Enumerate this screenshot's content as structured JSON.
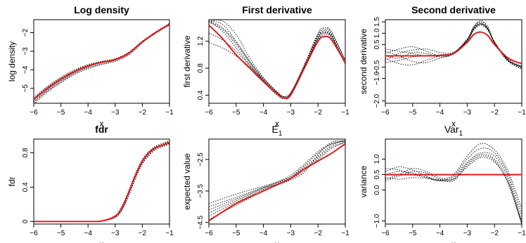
{
  "chart_data": [
    {
      "type": "line",
      "title": "Log density",
      "title_bold": true,
      "xlabel": "x",
      "ylabel": "log density",
      "xlim": [
        -6,
        -1
      ],
      "ylim": [
        -5.8,
        -1.3
      ],
      "xticks": [
        -6,
        -5,
        -4,
        -3,
        -2,
        -1
      ],
      "yticks": [
        -5,
        -4,
        -3,
        -2
      ],
      "truth": {
        "color": "#e41a1c",
        "x": [
          -6.0,
          -5.5,
          -5.0,
          -4.5,
          -4.0,
          -3.5,
          -3.0,
          -2.5,
          -2.0,
          -1.5,
          -1.0
        ],
        "y": [
          -5.6,
          -5.0,
          -4.5,
          -4.1,
          -3.8,
          -3.6,
          -3.45,
          -3.1,
          -2.5,
          -2.0,
          -1.55
        ]
      },
      "replicates_style": "dotted black",
      "replicates": [
        [
          -5.75,
          -5.15,
          -4.65,
          -4.2,
          -3.9,
          -3.68,
          -3.5,
          -3.15,
          -2.5,
          -1.95,
          -1.55
        ],
        [
          -5.55,
          -4.95,
          -4.45,
          -4.05,
          -3.75,
          -3.55,
          -3.4,
          -3.05,
          -2.45,
          -1.95,
          -1.5
        ],
        [
          -5.85,
          -5.2,
          -4.7,
          -4.25,
          -3.95,
          -3.72,
          -3.55,
          -3.2,
          -2.55,
          -2.0,
          -1.6
        ],
        [
          -5.5,
          -4.9,
          -4.4,
          -4.0,
          -3.72,
          -3.55,
          -3.42,
          -3.08,
          -2.48,
          -1.98,
          -1.5
        ],
        [
          -5.7,
          -5.1,
          -4.6,
          -4.15,
          -3.85,
          -3.62,
          -3.48,
          -3.12,
          -2.52,
          -2.02,
          -1.58
        ],
        [
          -5.6,
          -5.05,
          -4.55,
          -4.12,
          -3.82,
          -3.6,
          -3.44,
          -3.1,
          -2.5,
          -2.0,
          -1.55
        ]
      ]
    },
    {
      "type": "line",
      "title": "First derivative",
      "title_bold": true,
      "xlabel": "x",
      "ylabel": "first derivative",
      "xlim": [
        -6,
        -1
      ],
      "ylim": [
        0.28,
        1.52
      ],
      "xticks": [
        -6,
        -5,
        -4,
        -3,
        -2,
        -1
      ],
      "yticks": [
        0.4,
        0.8,
        1.2
      ],
      "truth": {
        "color": "#e41a1c",
        "x": [
          -6.0,
          -5.5,
          -5.0,
          -4.5,
          -4.0,
          -3.5,
          -3.25,
          -3.0,
          -2.5,
          -2.0,
          -1.75,
          -1.5,
          -1.0
        ],
        "y": [
          1.44,
          1.24,
          1.0,
          0.8,
          0.6,
          0.42,
          0.36,
          0.4,
          0.8,
          1.2,
          1.27,
          1.22,
          0.88
        ]
      },
      "replicates_style": "dotted black",
      "replicates": [
        [
          1.5,
          1.35,
          1.1,
          0.85,
          0.6,
          0.4,
          0.35,
          0.42,
          0.85,
          1.28,
          1.36,
          1.3,
          0.9
        ],
        [
          1.5,
          1.45,
          1.2,
          0.9,
          0.62,
          0.42,
          0.36,
          0.4,
          0.8,
          1.25,
          1.34,
          1.28,
          0.88
        ],
        [
          1.48,
          1.38,
          1.15,
          0.88,
          0.64,
          0.44,
          0.38,
          0.44,
          0.82,
          1.22,
          1.3,
          1.25,
          0.86
        ],
        [
          1.5,
          1.5,
          1.3,
          0.95,
          0.66,
          0.45,
          0.38,
          0.43,
          0.84,
          1.3,
          1.38,
          1.32,
          0.9
        ],
        [
          1.18,
          1.1,
          0.98,
          0.82,
          0.62,
          0.42,
          0.35,
          0.4,
          0.82,
          1.27,
          1.33,
          1.27,
          0.87
        ],
        [
          1.32,
          1.22,
          1.05,
          0.84,
          0.62,
          0.42,
          0.36,
          0.41,
          0.84,
          1.32,
          1.4,
          1.34,
          0.92
        ],
        [
          1.5,
          1.4,
          1.18,
          0.9,
          0.65,
          0.44,
          0.37,
          0.42,
          0.82,
          1.24,
          1.32,
          1.26,
          0.86
        ]
      ]
    },
    {
      "type": "line",
      "title": "Second derivative",
      "title_bold": true,
      "xlabel": "x",
      "ylabel": "second derivative",
      "xlim": [
        -6,
        -1
      ],
      "ylim": [
        -2.1,
        1.6
      ],
      "xticks": [
        -6,
        -5,
        -4,
        -3,
        -2,
        -1
      ],
      "yticks": [
        -2.0,
        -1.0,
        -0.5,
        0.5,
        1.0,
        1.5
      ],
      "ytick_labels": [
        "−2.0",
        "−1.0",
        "−0.5",
        "0.5",
        "1.0",
        "1.5"
      ],
      "truth": {
        "color": "#e41a1c",
        "x": [
          -6.0,
          -5.5,
          -5.0,
          -4.5,
          -4.0,
          -3.5,
          -3.0,
          -2.75,
          -2.5,
          -2.25,
          -2.0,
          -1.5,
          -1.0
        ],
        "y": [
          0.0,
          0.0,
          0.0,
          0.0,
          0.02,
          0.1,
          0.6,
          0.95,
          1.05,
          0.9,
          0.5,
          -0.1,
          -0.35
        ]
      },
      "replicates_style": "dotted black",
      "replicates": [
        [
          0.3,
          0.2,
          0.1,
          0.0,
          0.0,
          0.1,
          0.7,
          1.2,
          1.4,
          1.2,
          0.6,
          -0.2,
          -0.5
        ],
        [
          -0.3,
          -0.2,
          -0.05,
          0.0,
          0.05,
          0.15,
          0.75,
          1.3,
          1.5,
          1.25,
          0.55,
          -0.25,
          -0.55
        ],
        [
          0.1,
          0.3,
          0.4,
          0.2,
          0.0,
          0.1,
          0.65,
          1.15,
          1.35,
          1.15,
          0.6,
          -0.15,
          -0.45
        ],
        [
          -0.1,
          -0.35,
          -0.4,
          -0.2,
          0.0,
          0.12,
          0.7,
          1.25,
          1.45,
          1.2,
          0.6,
          -0.2,
          -0.5
        ],
        [
          0.2,
          0.0,
          -0.25,
          -0.3,
          -0.1,
          0.1,
          0.72,
          1.3,
          1.55,
          1.3,
          0.62,
          -0.22,
          -0.6
        ],
        [
          -0.2,
          0.1,
          0.25,
          0.3,
          0.15,
          0.15,
          0.68,
          1.2,
          1.4,
          1.18,
          0.58,
          -0.18,
          -0.48
        ],
        [
          0.0,
          -0.1,
          0.15,
          0.1,
          -0.05,
          0.08,
          0.7,
          1.22,
          1.42,
          1.2,
          0.6,
          -0.2,
          -0.52
        ]
      ]
    },
    {
      "type": "line",
      "title": "fdr",
      "title_bold": true,
      "xlabel": "x",
      "ylabel": "fdr",
      "xlim": [
        -6,
        -1
      ],
      "ylim": [
        -0.03,
        0.96
      ],
      "xticks": [
        -6,
        -5,
        -4,
        -3,
        -2,
        -1
      ],
      "yticks": [
        0.0,
        0.4,
        0.8
      ],
      "truth": {
        "color": "#e41a1c",
        "x": [
          -6.0,
          -5.0,
          -4.0,
          -3.5,
          -3.0,
          -2.75,
          -2.5,
          -2.25,
          -2.0,
          -1.75,
          -1.5,
          -1.25,
          -1.0
        ],
        "y": [
          0.0,
          0.0,
          0.0,
          0.005,
          0.06,
          0.16,
          0.34,
          0.54,
          0.7,
          0.8,
          0.86,
          0.89,
          0.92
        ]
      },
      "replicates_style": "dotted black",
      "replicates": [
        [
          0.0,
          0.0,
          0.0,
          0.008,
          0.07,
          0.18,
          0.36,
          0.56,
          0.72,
          0.82,
          0.88,
          0.91,
          0.94
        ],
        [
          0.0,
          0.0,
          0.0,
          0.004,
          0.05,
          0.14,
          0.32,
          0.52,
          0.68,
          0.78,
          0.85,
          0.88,
          0.91
        ],
        [
          0.0,
          0.0,
          0.0,
          0.006,
          0.065,
          0.17,
          0.35,
          0.55,
          0.71,
          0.81,
          0.87,
          0.9,
          0.93
        ],
        [
          0.0,
          0.0,
          0.0,
          0.003,
          0.045,
          0.13,
          0.3,
          0.5,
          0.67,
          0.77,
          0.84,
          0.87,
          0.9
        ]
      ]
    },
    {
      "type": "line",
      "title": "E",
      "title_subscript": "1",
      "title_bold": false,
      "xlabel": "x",
      "ylabel": "expected value",
      "xlim": [
        -6,
        -1
      ],
      "ylim": [
        -4.55,
        -1.85
      ],
      "xticks": [
        -6,
        -5,
        -4,
        -3,
        -2,
        -1
      ],
      "yticks": [
        -4.5,
        -3.5,
        -2.5
      ],
      "truth": {
        "color": "#e41a1c",
        "x": [
          -6.0,
          -5.0,
          -4.0,
          -3.5,
          -3.0,
          -2.5,
          -2.0,
          -1.5,
          -1.0
        ],
        "y": [
          -4.45,
          -3.9,
          -3.5,
          -3.3,
          -3.1,
          -2.8,
          -2.55,
          -2.3,
          -2.0
        ]
      },
      "replicates_style": "dotted black",
      "replicates": [
        [
          -4.1,
          -3.75,
          -3.4,
          -3.25,
          -3.05,
          -2.7,
          -2.3,
          -2.0,
          -1.9
        ],
        [
          -4.3,
          -3.85,
          -3.45,
          -3.28,
          -3.1,
          -2.8,
          -2.45,
          -2.1,
          -1.95
        ],
        [
          -3.9,
          -3.6,
          -3.35,
          -3.22,
          -3.05,
          -2.75,
          -2.4,
          -2.05,
          -1.9
        ],
        [
          -4.4,
          -3.95,
          -3.5,
          -3.32,
          -3.12,
          -2.85,
          -2.5,
          -2.15,
          -1.95
        ],
        [
          -4.2,
          -3.8,
          -3.42,
          -3.3,
          -3.15,
          -2.9,
          -2.35,
          -1.95,
          -1.9
        ],
        [
          -4.0,
          -3.7,
          -3.38,
          -3.22,
          -3.0,
          -2.65,
          -2.25,
          -2.0,
          -1.92
        ]
      ]
    },
    {
      "type": "line",
      "title": "Var",
      "title_subscript": "1",
      "title_bold": false,
      "xlabel": "x",
      "ylabel": "variance",
      "xlim": [
        -6,
        -1
      ],
      "ylim": [
        -1.1,
        1.65
      ],
      "xticks": [
        -6,
        -5,
        -4,
        -3,
        -2,
        -1
      ],
      "yticks": [
        -1.0,
        0.0,
        0.5,
        1.0
      ],
      "ytick_labels": [
        "−1.0",
        "0.0",
        "0.5",
        "1.0"
      ],
      "truth": {
        "color": "#e41a1c",
        "x": [
          -6.0,
          -1.0
        ],
        "y": [
          0.5,
          0.5
        ]
      },
      "replicates_style": "dotted black",
      "replicates": [
        [
          0.5,
          0.6,
          0.55,
          0.4,
          0.3,
          0.4,
          0.9,
          1.2,
          1.1,
          0.4,
          -1.0
        ],
        [
          0.3,
          0.45,
          0.6,
          0.55,
          0.35,
          0.3,
          0.8,
          1.1,
          0.95,
          0.2,
          -1.1
        ],
        [
          0.6,
          0.75,
          0.65,
          0.45,
          0.32,
          0.45,
          1.0,
          1.35,
          1.2,
          0.5,
          -0.8
        ],
        [
          0.4,
          0.35,
          0.4,
          0.38,
          0.3,
          0.35,
          0.85,
          1.15,
          1.0,
          0.3,
          -1.1
        ],
        [
          0.7,
          0.65,
          0.5,
          0.42,
          0.34,
          0.5,
          1.1,
          1.5,
          1.3,
          0.6,
          -0.6
        ],
        [
          0.35,
          0.5,
          0.7,
          0.6,
          0.4,
          0.35,
          0.75,
          1.05,
          0.9,
          0.25,
          -1.05
        ]
      ],
      "replicates_x": [
        -6.0,
        -5.5,
        -5.0,
        -4.5,
        -4.0,
        -3.5,
        -3.0,
        -2.5,
        -2.0,
        -1.5,
        -1.0
      ]
    }
  ]
}
